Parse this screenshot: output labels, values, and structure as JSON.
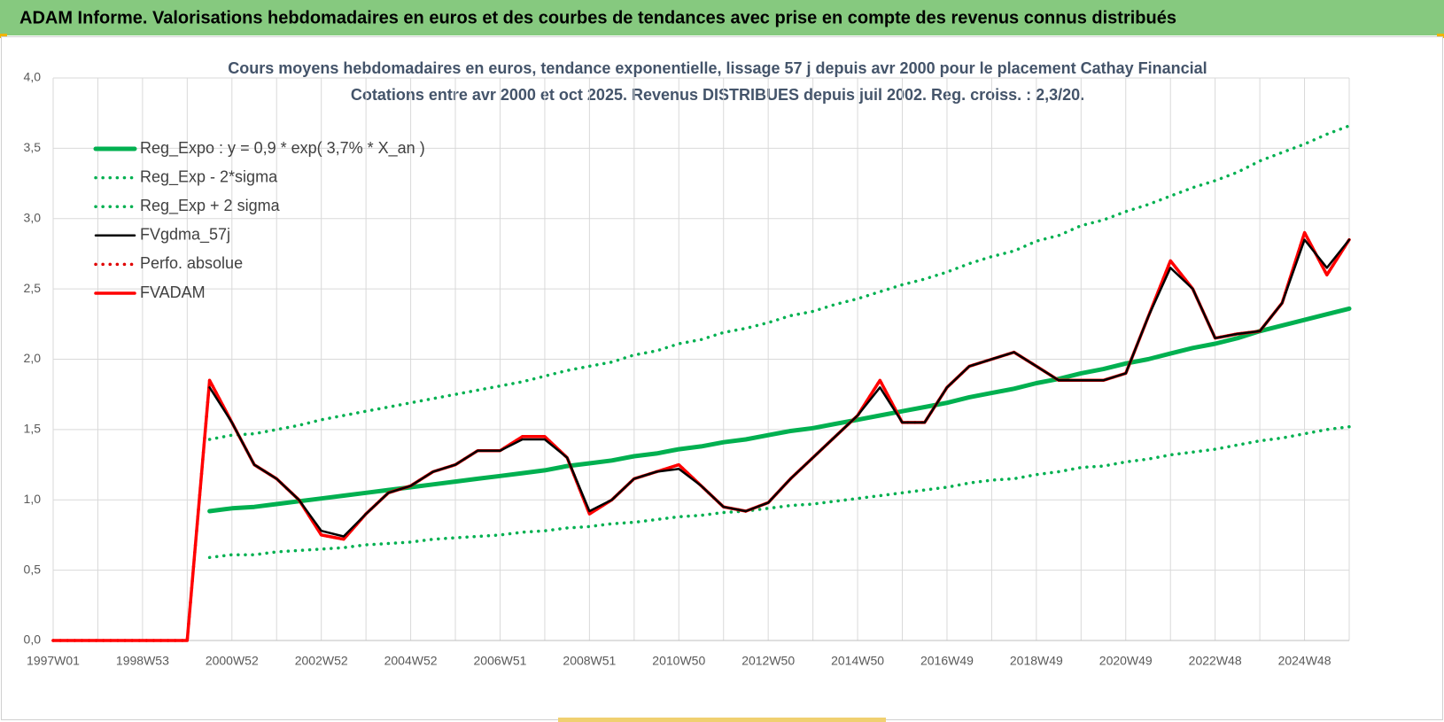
{
  "page_title": "ADAM Informe. Valorisations hebdomadaires en euros et des courbes de tendances avec prise en compte des revenus connus distribués",
  "chart_data": {
    "type": "line",
    "title": "Cours moyens hebdomadaires en euros, tendance exponentielle, lissage 57 j depuis avr 2000 pour le placement Cathay Financial",
    "subtitle": "Cotations entre avr 2000 et oct 2025.  Revenus DISTRIBUES depuis juil 2002. Reg. croiss. : 2,3/20.",
    "categories": [
      "1997W01",
      null,
      null,
      null,
      "1998W53",
      null,
      null,
      null,
      "2000W52",
      null,
      null,
      null,
      "2002W52",
      null,
      null,
      null,
      "2004W52",
      null,
      null,
      null,
      "2006W51",
      null,
      null,
      null,
      "2008W51",
      null,
      null,
      null,
      "2010W50",
      null,
      null,
      null,
      "2012W50",
      null,
      null,
      null,
      "2014W50",
      null,
      null,
      null,
      "2016W49",
      null,
      null,
      null,
      "2018W49",
      null,
      null,
      null,
      "2020W49",
      null,
      null,
      null,
      "2022W48",
      null,
      null,
      null,
      "2024W48",
      null,
      null
    ],
    "ylim": [
      0,
      4
    ],
    "yticks": [
      {
        "value": 0,
        "label": "0,0"
      },
      {
        "value": 0.5,
        "label": "0,5"
      },
      {
        "value": 1,
        "label": "1,0"
      },
      {
        "value": 1.5,
        "label": "1,5"
      },
      {
        "value": 2,
        "label": "2,0"
      },
      {
        "value": 2.5,
        "label": "2,5"
      },
      {
        "value": 3,
        "label": "3,0"
      },
      {
        "value": 3.5,
        "label": "3,5"
      },
      {
        "value": 4,
        "label": "4,0"
      }
    ],
    "grid": true,
    "legend": "upper left",
    "series": [
      {
        "name": "Reg_Expo : y = 0,9 * exp( 3,7% *  X_an )",
        "color": "#00b050",
        "style": "solid",
        "values": [
          null,
          null,
          null,
          null,
          null,
          null,
          null,
          0.92,
          0.94,
          0.95,
          0.97,
          0.99,
          1.01,
          1.03,
          1.05,
          1.07,
          1.09,
          1.11,
          1.13,
          1.15,
          1.17,
          1.19,
          1.21,
          1.24,
          1.26,
          1.28,
          1.31,
          1.33,
          1.36,
          1.38,
          1.41,
          1.43,
          1.46,
          1.49,
          1.51,
          1.54,
          1.57,
          1.6,
          1.63,
          1.66,
          1.69,
          1.73,
          1.76,
          1.79,
          1.83,
          1.86,
          1.9,
          1.93,
          1.97,
          2.0,
          2.04,
          2.08,
          2.11,
          2.15,
          2.2,
          2.24,
          2.28,
          2.32,
          2.36
        ]
      },
      {
        "name": "Reg_Exp - 2*sigma",
        "color": "#00b050",
        "style": "dotted",
        "values": [
          null,
          null,
          null,
          null,
          null,
          null,
          null,
          0.59,
          0.61,
          0.61,
          0.63,
          0.64,
          0.65,
          0.66,
          0.68,
          0.69,
          0.7,
          0.72,
          0.73,
          0.74,
          0.75,
          0.77,
          0.78,
          0.8,
          0.81,
          0.83,
          0.84,
          0.86,
          0.88,
          0.89,
          0.91,
          0.92,
          0.94,
          0.96,
          0.97,
          0.99,
          1.01,
          1.03,
          1.05,
          1.07,
          1.09,
          1.12,
          1.14,
          1.15,
          1.18,
          1.2,
          1.23,
          1.24,
          1.27,
          1.29,
          1.32,
          1.34,
          1.36,
          1.39,
          1.42,
          1.44,
          1.47,
          1.5,
          1.52
        ]
      },
      {
        "name": "Reg_Exp + 2 sigma",
        "color": "#00b050",
        "style": "dotted",
        "values": [
          null,
          null,
          null,
          null,
          null,
          null,
          null,
          1.43,
          1.46,
          1.47,
          1.5,
          1.53,
          1.57,
          1.6,
          1.63,
          1.66,
          1.69,
          1.72,
          1.75,
          1.78,
          1.81,
          1.84,
          1.88,
          1.92,
          1.95,
          1.98,
          2.03,
          2.06,
          2.11,
          2.14,
          2.19,
          2.22,
          2.26,
          2.31,
          2.34,
          2.39,
          2.43,
          2.48,
          2.53,
          2.57,
          2.62,
          2.68,
          2.73,
          2.77,
          2.84,
          2.88,
          2.95,
          2.99,
          3.05,
          3.1,
          3.16,
          3.22,
          3.27,
          3.33,
          3.41,
          3.47,
          3.53,
          3.6,
          3.66
        ]
      },
      {
        "name": "FVgdma_57j",
        "color": "#000000",
        "style": "solid",
        "values": [
          null,
          null,
          null,
          null,
          null,
          null,
          null,
          1.8,
          1.55,
          1.25,
          1.15,
          1.0,
          0.78,
          0.74,
          0.9,
          1.05,
          1.1,
          1.2,
          1.25,
          1.35,
          1.35,
          1.43,
          1.43,
          1.3,
          0.92,
          1.0,
          1.15,
          1.2,
          1.22,
          1.1,
          0.95,
          0.92,
          0.98,
          1.15,
          1.3,
          1.45,
          1.6,
          1.8,
          1.55,
          1.55,
          1.8,
          1.95,
          2.0,
          2.05,
          1.95,
          1.85,
          1.85,
          1.85,
          1.9,
          2.3,
          2.65,
          2.5,
          2.15,
          2.18,
          2.2,
          2.4,
          2.85,
          2.65,
          2.85
        ]
      },
      {
        "name": "Perfo. absolue",
        "color": "#e00000",
        "style": "dotted",
        "values": [
          0,
          0,
          0,
          0,
          0,
          0,
          0,
          1.85,
          1.55,
          1.25,
          1.15,
          1.0,
          0.75,
          0.72,
          0.9,
          1.05,
          1.1,
          1.2,
          1.25,
          1.35,
          1.35,
          1.45,
          1.45,
          1.3,
          0.9,
          1.0,
          1.15,
          1.2,
          1.25,
          1.1,
          0.95,
          0.92,
          0.98,
          1.15,
          1.3,
          1.45,
          1.6,
          1.85,
          1.55,
          1.55,
          1.8,
          1.95,
          2.0,
          2.05,
          1.95,
          1.85,
          1.85,
          1.85,
          1.9,
          2.3,
          2.7,
          2.5,
          2.15,
          2.18,
          2.2,
          2.4,
          2.9,
          2.6,
          2.85
        ]
      },
      {
        "name": "FVADAM",
        "color": "#ff0000",
        "style": "solid",
        "values": [
          0,
          0,
          0,
          0,
          0,
          0,
          0,
          1.85,
          1.55,
          1.25,
          1.15,
          1.0,
          0.75,
          0.72,
          0.9,
          1.05,
          1.1,
          1.2,
          1.25,
          1.35,
          1.35,
          1.45,
          1.45,
          1.3,
          0.9,
          1.0,
          1.15,
          1.2,
          1.25,
          1.1,
          0.95,
          0.92,
          0.98,
          1.15,
          1.3,
          1.45,
          1.6,
          1.85,
          1.55,
          1.55,
          1.8,
          1.95,
          2.0,
          2.05,
          1.95,
          1.85,
          1.85,
          1.85,
          1.9,
          2.3,
          2.7,
          2.5,
          2.15,
          2.18,
          2.2,
          2.4,
          2.9,
          2.6,
          2.85
        ]
      }
    ]
  }
}
